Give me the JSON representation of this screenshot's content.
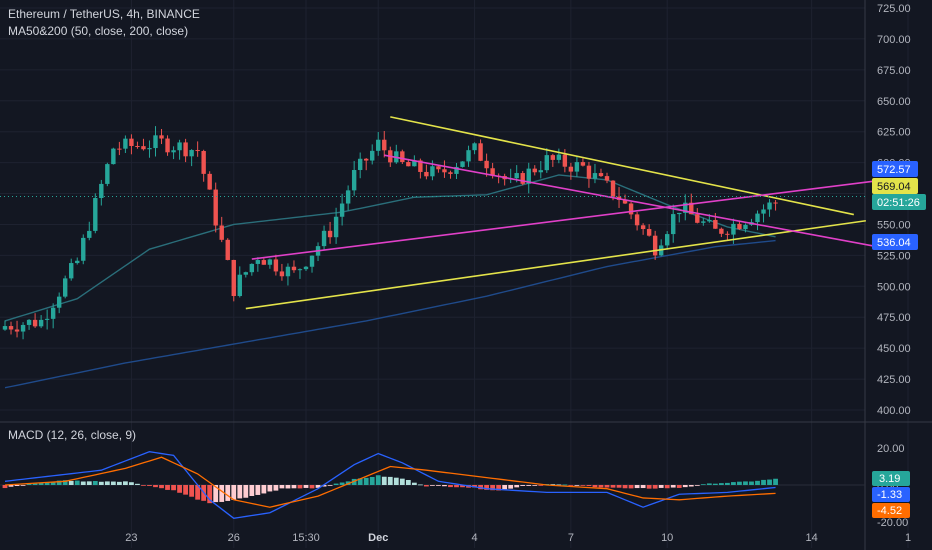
{
  "header": {
    "symbol_title": "Ethereum / TetherUS, 4h, BINANCE",
    "ma_indicator": "MA50&200 (50, close, 200, close)",
    "macd_indicator": "MACD (12, 26, close, 9)"
  },
  "colors": {
    "background": "#131722",
    "grid": "#1e2230",
    "up": "#26a69a",
    "down": "#ef5350",
    "ma50": "#2a6e7a",
    "ma200": "#1f4a8a",
    "trend_yellow": "#e3e34a",
    "trend_magenta": "#e040c8",
    "macd_line": "#2962ff",
    "signal_line": "#ff6d00",
    "hist_up_strong": "#26a69a",
    "hist_up_weak": "#b2dfdb",
    "hist_down_strong": "#ef5350",
    "hist_down_weak": "#ffcdd2"
  },
  "price_labels": {
    "last_price": "572.57",
    "yellow_line_value": "569.04",
    "countdown": "02:51:26",
    "magenta_line_value": "536.04"
  },
  "macd_labels": {
    "histogram": "3.19",
    "macd": "-1.33",
    "signal": "-4.52"
  },
  "chart_data": [
    {
      "type": "candlestick",
      "title": "Ethereum / TetherUS, 4h, BINANCE",
      "y_axis_ticks": [
        "725.00",
        "700.00",
        "675.00",
        "650.00",
        "625.00",
        "600.00",
        "575.00",
        "550.00",
        "525.00",
        "500.00",
        "475.00",
        "450.00",
        "425.00",
        "400.00"
      ],
      "ylim": [
        392,
        733
      ],
      "x_axis_ticks": [
        "23",
        "26",
        "15:30",
        "Dec",
        "4",
        "7",
        "10",
        "14",
        "1"
      ],
      "x_tick_index": [
        21,
        38,
        50,
        62,
        78,
        94,
        110,
        134,
        150
      ],
      "last_price": 572.57,
      "candle_anchor_closes": [
        [
          0,
          468
        ],
        [
          6,
          472
        ],
        [
          12,
          520
        ],
        [
          18,
          612
        ],
        [
          26,
          616
        ],
        [
          32,
          610
        ],
        [
          38,
          498
        ],
        [
          42,
          525
        ],
        [
          48,
          510
        ],
        [
          54,
          545
        ],
        [
          58,
          590
        ],
        [
          62,
          615
        ],
        [
          66,
          598
        ],
        [
          72,
          590
        ],
        [
          78,
          610
        ],
        [
          84,
          582
        ],
        [
          90,
          602
        ],
        [
          96,
          596
        ],
        [
          102,
          572
        ],
        [
          108,
          532
        ],
        [
          112,
          564
        ],
        [
          118,
          544
        ],
        [
          122,
          552
        ],
        [
          128,
          568
        ]
      ],
      "ma50_anchors": [
        [
          0,
          472
        ],
        [
          12,
          490
        ],
        [
          24,
          530
        ],
        [
          38,
          550
        ],
        [
          56,
          560
        ],
        [
          68,
          572
        ],
        [
          80,
          574
        ],
        [
          92,
          590
        ],
        [
          100,
          586
        ],
        [
          110,
          566
        ],
        [
          120,
          548
        ],
        [
          128,
          540
        ]
      ],
      "ma200_anchors": [
        [
          0,
          418
        ],
        [
          20,
          438
        ],
        [
          40,
          455
        ],
        [
          60,
          472
        ],
        [
          80,
          492
        ],
        [
          100,
          516
        ],
        [
          118,
          532
        ],
        [
          128,
          537
        ]
      ],
      "trendlines": [
        {
          "color": "yellow",
          "from": [
            64,
            637
          ],
          "to": [
            141,
            558
          ]
        },
        {
          "color": "yellow",
          "from": [
            40,
            482
          ],
          "to": [
            143,
            553
          ]
        },
        {
          "color": "magenta",
          "from": [
            63,
            606
          ],
          "to": [
            146,
            531
          ]
        },
        {
          "color": "magenta",
          "from": [
            41,
            522
          ],
          "to": [
            146,
            586
          ]
        }
      ]
    },
    {
      "type": "histogram+line",
      "title": "MACD (12, 26, close, 9)",
      "y_axis_ticks": [
        "20.00",
        "0.00",
        "-20.00"
      ],
      "ylim": [
        -22,
        32
      ],
      "histogram_anchors": [
        [
          0,
          -1.5
        ],
        [
          5,
          1
        ],
        [
          10,
          2.5
        ],
        [
          14,
          2
        ],
        [
          20,
          2
        ],
        [
          28,
          -3
        ],
        [
          34,
          -10
        ],
        [
          40,
          -7
        ],
        [
          46,
          -2
        ],
        [
          52,
          -1.5
        ],
        [
          58,
          3
        ],
        [
          62,
          5
        ],
        [
          66,
          3.5
        ],
        [
          70,
          -0.5
        ],
        [
          76,
          -1
        ],
        [
          82,
          -3
        ],
        [
          86,
          -0.5
        ],
        [
          90,
          0.5
        ],
        [
          96,
          -0.5
        ],
        [
          104,
          -2
        ],
        [
          112,
          -1.5
        ],
        [
          118,
          1
        ],
        [
          122,
          1.5
        ],
        [
          128,
          3.19
        ]
      ],
      "macd_anchors": [
        [
          0,
          2
        ],
        [
          8,
          5
        ],
        [
          16,
          8
        ],
        [
          24,
          18
        ],
        [
          28,
          16
        ],
        [
          34,
          -8
        ],
        [
          38,
          -18
        ],
        [
          44,
          -15
        ],
        [
          52,
          -2
        ],
        [
          58,
          11
        ],
        [
          62,
          17
        ],
        [
          66,
          12
        ],
        [
          72,
          2
        ],
        [
          80,
          -2
        ],
        [
          90,
          -4
        ],
        [
          100,
          -4
        ],
        [
          106,
          -12
        ],
        [
          112,
          -5
        ],
        [
          120,
          -4
        ],
        [
          128,
          -1.33
        ]
      ],
      "signal_anchors": [
        [
          0,
          0
        ],
        [
          10,
          2
        ],
        [
          20,
          9
        ],
        [
          26,
          15
        ],
        [
          32,
          6
        ],
        [
          38,
          -8
        ],
        [
          44,
          -12
        ],
        [
          52,
          -6
        ],
        [
          58,
          2
        ],
        [
          64,
          10
        ],
        [
          70,
          8
        ],
        [
          80,
          4
        ],
        [
          90,
          0
        ],
        [
          100,
          -2
        ],
        [
          106,
          -7
        ],
        [
          112,
          -8
        ],
        [
          120,
          -6
        ],
        [
          128,
          -4.52
        ]
      ]
    }
  ]
}
